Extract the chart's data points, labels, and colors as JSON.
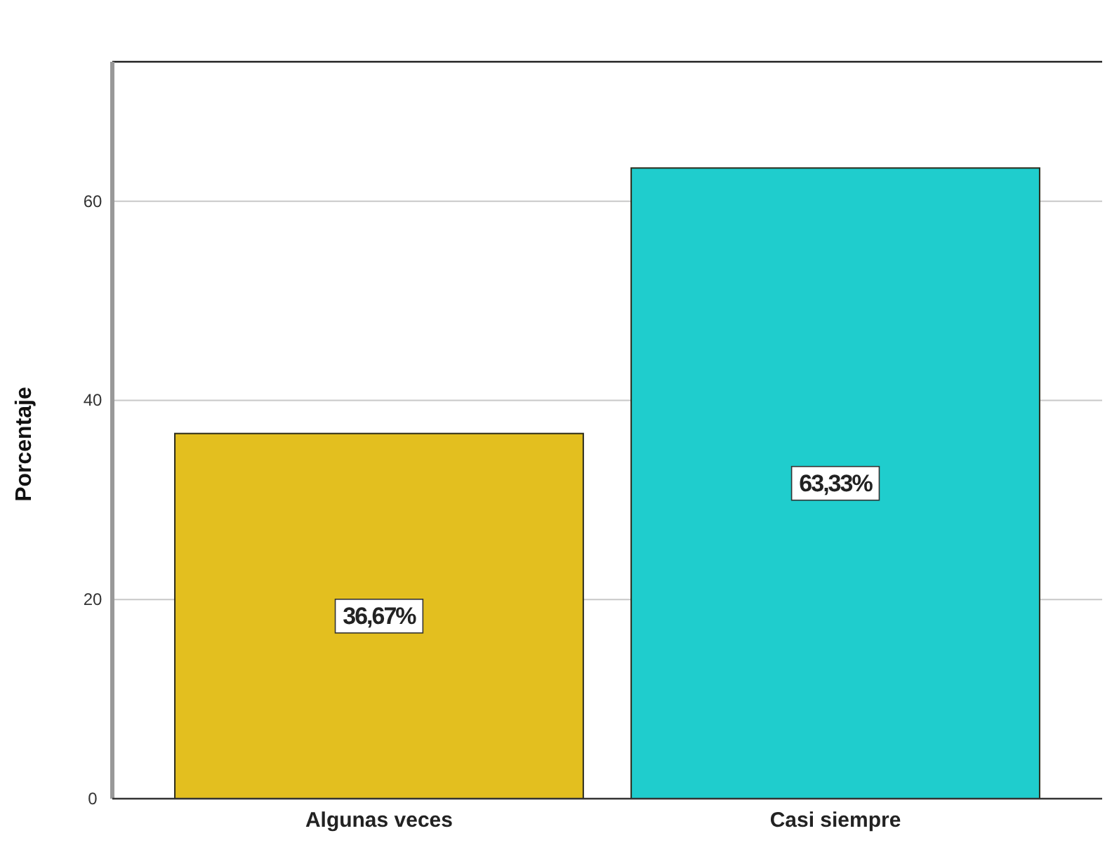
{
  "chart_data": {
    "type": "bar",
    "ylabel": "Porcentaje",
    "categories": [
      "Algunas veces",
      "Casi siempre"
    ],
    "values": [
      36.67,
      63.33
    ],
    "colors": [
      "#e3bf1f",
      "#1fcdcd"
    ],
    "value_labels": [
      "36,67%",
      "63,33%"
    ],
    "ylim": [
      0,
      74
    ],
    "yticks": [
      0,
      20,
      40,
      60
    ],
    "grid": "y"
  }
}
